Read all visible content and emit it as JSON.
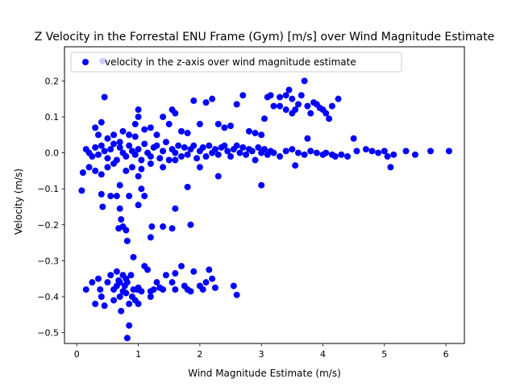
{
  "chart_data": {
    "type": "scatter",
    "title": "Z Velocity in the Forrestal ENU Frame (Gym) [m/s] over Wind Magnitude Estimate",
    "xlabel": "Wind Magnitude Estimate (m/s)",
    "ylabel": "Velocity (m/s)",
    "xlim": [
      -0.2,
      6.3
    ],
    "ylim": [
      -0.53,
      0.295
    ],
    "xticks": [
      0,
      1,
      2,
      3,
      4,
      5,
      6
    ],
    "yticks": [
      -0.5,
      -0.4,
      -0.3,
      -0.2,
      -0.1,
      0.0,
      0.1,
      0.2
    ],
    "xtick_labels": [
      "0",
      "1",
      "2",
      "3",
      "4",
      "5",
      "6"
    ],
    "ytick_labels": [
      "−0.5",
      "−0.4",
      "−0.3",
      "−0.2",
      "−0.1",
      "0.0",
      "0.1",
      "0.2"
    ],
    "grid": false,
    "legend_position": "top-left",
    "series": [
      {
        "name": "velocity in the z-axis over wind magnitude estimate",
        "color": "#0000ff",
        "marker": "circle",
        "points": [
          [
            0.42,
            0.255
          ],
          [
            0.45,
            0.155
          ],
          [
            0.4,
            0.085
          ],
          [
            0.3,
            0.07
          ],
          [
            0.35,
            0.05
          ],
          [
            0.5,
            0.04
          ],
          [
            0.6,
            0.05
          ],
          [
            0.7,
            0.03
          ],
          [
            0.75,
            0.06
          ],
          [
            0.85,
            0.05
          ],
          [
            0.95,
            0.045
          ],
          [
            1.0,
            0.12
          ],
          [
            1.0,
            0.1
          ],
          [
            0.95,
            0.08
          ],
          [
            1.1,
            0.065
          ],
          [
            1.2,
            0.07
          ],
          [
            1.3,
            0.05
          ],
          [
            1.4,
            0.1
          ],
          [
            1.5,
            0.08
          ],
          [
            1.55,
            0.12
          ],
          [
            1.6,
            0.11
          ],
          [
            1.7,
            0.06
          ],
          [
            1.8,
            0.055
          ],
          [
            1.9,
            0.145
          ],
          [
            2.0,
            0.08
          ],
          [
            2.1,
            0.14
          ],
          [
            2.2,
            0.15
          ],
          [
            2.3,
            0.08
          ],
          [
            2.4,
            0.07
          ],
          [
            2.5,
            0.075
          ],
          [
            2.6,
            0.135
          ],
          [
            2.7,
            0.16
          ],
          [
            2.8,
            0.06
          ],
          [
            2.9,
            0.055
          ],
          [
            3.0,
            0.05
          ],
          [
            3.05,
            0.095
          ],
          [
            3.1,
            0.155
          ],
          [
            3.15,
            0.16
          ],
          [
            3.2,
            0.13
          ],
          [
            3.3,
            0.155
          ],
          [
            3.4,
            0.16
          ],
          [
            3.45,
            0.175
          ],
          [
            3.5,
            0.15
          ],
          [
            3.55,
            0.12
          ],
          [
            3.6,
            0.135
          ],
          [
            3.65,
            0.16
          ],
          [
            3.7,
            0.2
          ],
          [
            3.75,
            0.13
          ],
          [
            3.8,
            0.11
          ],
          [
            3.85,
            0.14
          ],
          [
            3.9,
            0.135
          ],
          [
            3.95,
            0.125
          ],
          [
            4.0,
            0.12
          ],
          [
            4.05,
            0.11
          ],
          [
            4.1,
            0.095
          ],
          [
            4.15,
            0.13
          ],
          [
            4.25,
            0.15
          ],
          [
            3.5,
            0.11
          ],
          [
            3.4,
            0.12
          ],
          [
            3.3,
            0.13
          ],
          [
            0.15,
            0.01
          ],
          [
            0.2,
            0.0
          ],
          [
            0.25,
            -0.01
          ],
          [
            0.3,
            0.015
          ],
          [
            0.35,
            -0.005
          ],
          [
            0.4,
            0.02
          ],
          [
            0.45,
            0.005
          ],
          [
            0.5,
            -0.015
          ],
          [
            0.55,
            0.01
          ],
          [
            0.6,
            0.025
          ],
          [
            0.65,
            -0.02
          ],
          [
            0.7,
            0.015
          ],
          [
            0.75,
            0.0
          ],
          [
            0.8,
            -0.01
          ],
          [
            0.85,
            0.02
          ],
          [
            0.9,
            0.005
          ],
          [
            0.95,
            -0.005
          ],
          [
            1.0,
            0.01
          ],
          [
            1.05,
            -0.02
          ],
          [
            1.1,
            0.025
          ],
          [
            1.15,
            0.0
          ],
          [
            1.2,
            -0.01
          ],
          [
            1.25,
            0.015
          ],
          [
            1.3,
            0.02
          ],
          [
            1.35,
            -0.015
          ],
          [
            1.4,
            0.005
          ],
          [
            1.45,
            0.03
          ],
          [
            1.5,
            -0.02
          ],
          [
            1.55,
            0.01
          ],
          [
            1.6,
            0.0
          ],
          [
            1.65,
            0.02
          ],
          [
            1.7,
            -0.01
          ],
          [
            1.75,
            0.015
          ],
          [
            1.8,
            -0.005
          ],
          [
            1.85,
            0.01
          ],
          [
            1.9,
            0.02
          ],
          [
            1.95,
            -0.015
          ],
          [
            2.0,
            0.005
          ],
          [
            2.05,
            0.015
          ],
          [
            2.1,
            -0.01
          ],
          [
            2.15,
            0.02
          ],
          [
            2.2,
            0.0
          ],
          [
            2.25,
            0.01
          ],
          [
            2.3,
            -0.005
          ],
          [
            2.35,
            0.015
          ],
          [
            2.4,
            0.02
          ],
          [
            2.45,
            0.005
          ],
          [
            2.5,
            -0.01
          ],
          [
            2.55,
            0.01
          ],
          [
            2.6,
            0.02
          ],
          [
            2.65,
            0.0
          ],
          [
            2.7,
            0.015
          ],
          [
            2.75,
            -0.005
          ],
          [
            2.8,
            0.01
          ],
          [
            2.85,
            0.005
          ],
          [
            2.9,
            -0.02
          ],
          [
            2.95,
            0.015
          ],
          [
            3.0,
            0.0
          ],
          [
            3.05,
            0.01
          ],
          [
            3.1,
            -0.005
          ],
          [
            3.15,
            0.005
          ],
          [
            3.2,
            0.0
          ],
          [
            3.3,
            -0.01
          ],
          [
            3.4,
            0.005
          ],
          [
            3.5,
            0.01
          ],
          [
            3.55,
            -0.035
          ],
          [
            3.6,
            0.0
          ],
          [
            3.7,
            -0.005
          ],
          [
            3.75,
            0.04
          ],
          [
            3.8,
            0.005
          ],
          [
            3.9,
            0.0
          ],
          [
            4.0,
            -0.005
          ],
          [
            4.05,
            0.0
          ],
          [
            4.15,
            -0.005
          ],
          [
            4.2,
            -0.01
          ],
          [
            4.3,
            -0.005
          ],
          [
            4.4,
            -0.01
          ],
          [
            4.5,
            0.04
          ],
          [
            4.55,
            0.005
          ],
          [
            4.7,
            0.01
          ],
          [
            4.8,
            0.005
          ],
          [
            4.9,
            0.0
          ],
          [
            5.0,
            0.005
          ],
          [
            5.05,
            -0.01
          ],
          [
            5.1,
            -0.04
          ],
          [
            5.15,
            -0.005
          ],
          [
            5.35,
            0.005
          ],
          [
            5.5,
            -0.005
          ],
          [
            5.75,
            0.005
          ],
          [
            6.05,
            0.005
          ],
          [
            0.1,
            -0.055
          ],
          [
            0.08,
            -0.105
          ],
          [
            0.2,
            -0.04
          ],
          [
            0.3,
            -0.05
          ],
          [
            0.4,
            -0.06
          ],
          [
            0.5,
            -0.04
          ],
          [
            0.6,
            -0.03
          ],
          [
            0.7,
            -0.09
          ],
          [
            0.8,
            -0.05
          ],
          [
            0.9,
            -0.04
          ],
          [
            1.0,
            -0.065
          ],
          [
            1.05,
            -0.045
          ],
          [
            1.2,
            -0.03
          ],
          [
            1.4,
            -0.04
          ],
          [
            1.6,
            -0.02
          ],
          [
            2.3,
            -0.065
          ],
          [
            3.0,
            -0.09
          ],
          [
            2.0,
            -0.04
          ],
          [
            0.4,
            -0.115
          ],
          [
            0.42,
            -0.15
          ],
          [
            0.55,
            -0.12
          ],
          [
            0.65,
            -0.12
          ],
          [
            0.7,
            -0.155
          ],
          [
            0.68,
            -0.21
          ],
          [
            0.72,
            -0.185
          ],
          [
            0.75,
            -0.205
          ],
          [
            0.8,
            -0.215
          ],
          [
            0.82,
            -0.245
          ],
          [
            0.85,
            -0.12
          ],
          [
            1.0,
            -0.145
          ],
          [
            1.05,
            -0.1
          ],
          [
            1.1,
            -0.12
          ],
          [
            1.2,
            -0.235
          ],
          [
            1.22,
            -0.205
          ],
          [
            1.4,
            -0.205
          ],
          [
            1.55,
            -0.21
          ],
          [
            1.6,
            -0.155
          ],
          [
            1.85,
            -0.2
          ],
          [
            1.8,
            -0.095
          ],
          [
            0.92,
            -0.29
          ],
          [
            0.15,
            -0.38
          ],
          [
            0.25,
            -0.36
          ],
          [
            0.3,
            -0.42
          ],
          [
            0.35,
            -0.35
          ],
          [
            0.38,
            -0.38
          ],
          [
            0.4,
            -0.4
          ],
          [
            0.45,
            -0.425
          ],
          [
            0.5,
            -0.36
          ],
          [
            0.55,
            -0.34
          ],
          [
            0.6,
            -0.38
          ],
          [
            0.65,
            -0.33
          ],
          [
            0.68,
            -0.355
          ],
          [
            0.7,
            -0.4
          ],
          [
            0.72,
            -0.44
          ],
          [
            0.75,
            -0.34
          ],
          [
            0.78,
            -0.37
          ],
          [
            0.8,
            -0.39
          ],
          [
            0.82,
            -0.36
          ],
          [
            0.85,
            -0.42
          ],
          [
            0.88,
            -0.34
          ],
          [
            0.9,
            -0.4
          ],
          [
            0.92,
            -0.38
          ],
          [
            0.95,
            -0.41
          ],
          [
            0.98,
            -0.38
          ],
          [
            1.0,
            -0.375
          ],
          [
            1.05,
            -0.385
          ],
          [
            1.1,
            -0.315
          ],
          [
            1.15,
            -0.325
          ],
          [
            1.2,
            -0.385
          ],
          [
            1.25,
            -0.38
          ],
          [
            1.3,
            -0.36
          ],
          [
            1.35,
            -0.375
          ],
          [
            1.4,
            -0.38
          ],
          [
            1.45,
            -0.34
          ],
          [
            1.55,
            -0.36
          ],
          [
            1.6,
            -0.38
          ],
          [
            1.7,
            -0.315
          ],
          [
            1.75,
            -0.37
          ],
          [
            1.8,
            -0.38
          ],
          [
            1.85,
            -0.385
          ],
          [
            1.9,
            -0.33
          ],
          [
            2.0,
            -0.37
          ],
          [
            2.05,
            -0.38
          ],
          [
            2.1,
            -0.36
          ],
          [
            2.15,
            -0.325
          ],
          [
            2.2,
            -0.35
          ],
          [
            2.25,
            -0.375
          ],
          [
            2.55,
            -0.37
          ],
          [
            2.6,
            -0.395
          ],
          [
            0.82,
            -0.515
          ],
          [
            0.85,
            -0.48
          ],
          [
            0.6,
            -0.41
          ],
          [
            1.0,
            -0.42
          ],
          [
            1.2,
            -0.4
          ],
          [
            1.6,
            -0.335
          ],
          [
            0.7,
            -0.36
          ],
          [
            0.75,
            -0.385
          ],
          [
            0.8,
            -0.35
          ],
          [
            0.65,
            -0.37
          ]
        ]
      }
    ]
  }
}
